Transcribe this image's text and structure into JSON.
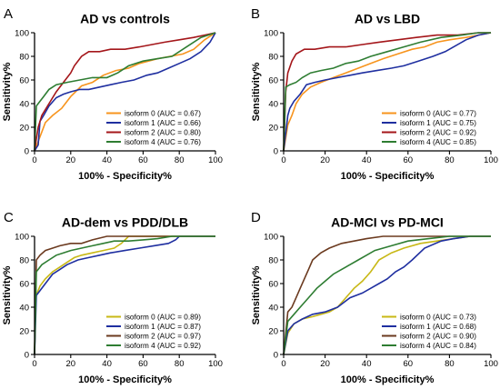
{
  "chart_data": [
    {
      "letter": "A",
      "type": "line",
      "title": "AD vs controls",
      "xlabel": "100% - Specificity%",
      "ylabel": "Sensitivity%",
      "xlim": [
        0,
        100
      ],
      "ylim": [
        0,
        100
      ],
      "xticks": [
        "0",
        "20",
        "40",
        "60",
        "80",
        "100"
      ],
      "yticks": [
        "0",
        "20",
        "40",
        "60",
        "80",
        "100"
      ],
      "legend_position": "bottom-right",
      "series": [
        {
          "name": "isoform 0 (AUC = 0.67)",
          "color": "#F7941D",
          "x": [
            0,
            2,
            4,
            6,
            10,
            15,
            20,
            26,
            32,
            38,
            45,
            52,
            58,
            63,
            68,
            75,
            82,
            88,
            94,
            100
          ],
          "y": [
            0,
            8,
            16,
            24,
            30,
            36,
            46,
            55,
            58,
            64,
            68,
            70,
            74,
            76,
            78,
            80,
            82,
            86,
            94,
            100
          ]
        },
        {
          "name": "isoform 1 (AUC = 0.66)",
          "color": "#1F2FA0",
          "x": [
            0,
            2,
            3,
            5,
            8,
            12,
            16,
            20,
            25,
            30,
            36,
            42,
            48,
            55,
            62,
            68,
            74,
            80,
            86,
            92,
            97,
            100
          ],
          "y": [
            0,
            5,
            25,
            30,
            38,
            45,
            48,
            50,
            52,
            52,
            54,
            56,
            58,
            60,
            64,
            66,
            70,
            74,
            78,
            84,
            92,
            100
          ]
        },
        {
          "name": "isoform 2 (AUC = 0.80)",
          "color": "#A4161A",
          "x": [
            0,
            2,
            4,
            8,
            12,
            16,
            20,
            22,
            26,
            30,
            36,
            42,
            50,
            58,
            65,
            72,
            80,
            88,
            94,
            100
          ],
          "y": [
            0,
            20,
            30,
            40,
            50,
            58,
            66,
            72,
            80,
            84,
            84,
            86,
            86,
            88,
            90,
            92,
            94,
            96,
            98,
            100
          ]
        },
        {
          "name": "isoform 4 (AUC = 0.76)",
          "color": "#2E7D32",
          "x": [
            0,
            1,
            3,
            5,
            8,
            12,
            18,
            25,
            32,
            40,
            46,
            52,
            60,
            68,
            76,
            84,
            92,
            100
          ],
          "y": [
            0,
            38,
            42,
            46,
            52,
            56,
            58,
            60,
            62,
            62,
            66,
            72,
            76,
            78,
            80,
            88,
            96,
            100
          ]
        }
      ]
    },
    {
      "letter": "B",
      "type": "line",
      "title": "AD vs LBD",
      "xlabel": "100% - Specificity%",
      "ylabel": "Sensitivity%",
      "xlim": [
        0,
        100
      ],
      "ylim": [
        0,
        100
      ],
      "xticks": [
        "0",
        "20",
        "40",
        "60",
        "80",
        "100"
      ],
      "yticks": [
        "0",
        "20",
        "40",
        "60",
        "80",
        "100"
      ],
      "legend_position": "bottom-right",
      "series": [
        {
          "name": "isoform 0 (AUC = 0.77)",
          "color": "#F7941D",
          "x": [
            0,
            2,
            4,
            6,
            9,
            13,
            18,
            24,
            30,
            36,
            42,
            48,
            55,
            62,
            68,
            74,
            80,
            88,
            94,
            100
          ],
          "y": [
            0,
            22,
            30,
            40,
            48,
            54,
            58,
            62,
            66,
            70,
            74,
            78,
            82,
            86,
            88,
            92,
            94,
            96,
            98,
            100
          ]
        },
        {
          "name": "isoform 1 (AUC = 0.75)",
          "color": "#1F2FA0",
          "x": [
            0,
            2,
            3,
            5,
            8,
            11,
            15,
            20,
            26,
            32,
            38,
            45,
            52,
            58,
            65,
            72,
            78,
            82,
            88,
            94,
            100
          ],
          "y": [
            0,
            30,
            36,
            42,
            48,
            56,
            58,
            60,
            62,
            64,
            66,
            68,
            70,
            72,
            76,
            80,
            84,
            88,
            94,
            98,
            100
          ]
        },
        {
          "name": "isoform 2 (AUC = 0.92)",
          "color": "#A4161A",
          "x": [
            0,
            1,
            2,
            4,
            6,
            10,
            15,
            22,
            30,
            38,
            46,
            55,
            64,
            74,
            84,
            94,
            100
          ],
          "y": [
            0,
            50,
            66,
            76,
            82,
            86,
            86,
            88,
            88,
            90,
            92,
            94,
            96,
            98,
            98,
            100,
            100
          ]
        },
        {
          "name": "isoform 4 (AUC = 0.85)",
          "color": "#2E7D32",
          "x": [
            0,
            1,
            3,
            6,
            9,
            13,
            18,
            24,
            30,
            36,
            42,
            50,
            58,
            66,
            76,
            86,
            94,
            100
          ],
          "y": [
            0,
            54,
            56,
            58,
            62,
            66,
            68,
            70,
            74,
            76,
            80,
            84,
            88,
            92,
            96,
            98,
            100,
            100
          ]
        }
      ]
    },
    {
      "letter": "C",
      "type": "line",
      "title": "AD-dem vs PDD/DLB",
      "xlabel": "100% - Specificity%",
      "ylabel": "Sensitivity%",
      "xlim": [
        0,
        100
      ],
      "ylim": [
        0,
        100
      ],
      "xticks": [
        "0",
        "20",
        "40",
        "60",
        "80",
        "100"
      ],
      "yticks": [
        "0",
        "20",
        "40",
        "60",
        "80",
        "100"
      ],
      "legend_position": "bottom-right",
      "series": [
        {
          "name": "isoform 0 (AUC = 0.89)",
          "color": "#C8B816",
          "x": [
            0,
            0.5,
            1,
            3,
            6,
            10,
            14,
            18,
            22,
            26,
            32,
            38,
            44,
            48,
            52,
            60,
            70,
            80,
            90,
            100
          ],
          "y": [
            0,
            45,
            50,
            58,
            64,
            70,
            74,
            78,
            82,
            84,
            86,
            88,
            90,
            94,
            100,
            100,
            100,
            100,
            100,
            100
          ]
        },
        {
          "name": "isoform 1 (AUC = 0.87)",
          "color": "#1F2FA0",
          "x": [
            0,
            1,
            3,
            6,
            10,
            14,
            18,
            24,
            30,
            36,
            42,
            50,
            58,
            66,
            74,
            78,
            80,
            90,
            100
          ],
          "y": [
            0,
            50,
            54,
            60,
            68,
            72,
            76,
            80,
            82,
            84,
            86,
            88,
            90,
            92,
            94,
            97,
            100,
            100,
            100
          ]
        },
        {
          "name": "isoform 2 (AUC = 0.97)",
          "color": "#6B3A1F",
          "x": [
            0,
            1,
            3,
            6,
            10,
            14,
            20,
            26,
            32,
            40,
            48,
            60,
            70,
            80,
            90,
            100
          ],
          "y": [
            0,
            80,
            84,
            88,
            90,
            92,
            94,
            94,
            97,
            100,
            100,
            100,
            100,
            100,
            100,
            100
          ]
        },
        {
          "name": "isoform 4 (AUC = 0.92)",
          "color": "#2E7D32",
          "x": [
            0,
            1,
            4,
            8,
            12,
            16,
            20,
            26,
            32,
            38,
            44,
            52,
            60,
            68,
            76,
            84,
            92,
            100
          ],
          "y": [
            0,
            70,
            76,
            80,
            84,
            86,
            88,
            90,
            92,
            94,
            96,
            96,
            97,
            98,
            100,
            100,
            100,
            100
          ]
        }
      ]
    },
    {
      "letter": "D",
      "type": "line",
      "title": "AD-MCI vs PD-MCI",
      "xlabel": "100% - Specificity%",
      "ylabel": "Sensitivity%",
      "xlim": [
        0,
        100
      ],
      "ylim": [
        0,
        100
      ],
      "xticks": [
        "0",
        "20",
        "40",
        "60",
        "80",
        "100"
      ],
      "yticks": [
        "0",
        "20",
        "40",
        "60",
        "80",
        "100"
      ],
      "legend_position": "bottom-right",
      "series": [
        {
          "name": "isoform 0 (AUC = 0.73)",
          "color": "#C8B816",
          "x": [
            0,
            2,
            5,
            9,
            14,
            18,
            22,
            26,
            30,
            34,
            38,
            42,
            46,
            52,
            58,
            66,
            74,
            82,
            90,
            100
          ],
          "y": [
            0,
            18,
            26,
            30,
            32,
            34,
            36,
            40,
            48,
            56,
            62,
            70,
            80,
            86,
            90,
            94,
            96,
            98,
            100,
            100
          ]
        },
        {
          "name": "isoform 1 (AUC = 0.68)",
          "color": "#1F2FA0",
          "x": [
            0,
            2,
            5,
            9,
            14,
            20,
            26,
            32,
            38,
            42,
            46,
            50,
            54,
            58,
            62,
            68,
            76,
            82,
            90,
            100
          ],
          "y": [
            0,
            20,
            26,
            30,
            34,
            36,
            40,
            48,
            52,
            56,
            60,
            64,
            70,
            74,
            80,
            90,
            96,
            98,
            100,
            100
          ]
        },
        {
          "name": "isoform 2 (AUC = 0.90)",
          "color": "#6B3A1F",
          "x": [
            0,
            2,
            4,
            6,
            8,
            10,
            12,
            14,
            18,
            22,
            28,
            34,
            40,
            48,
            60,
            72,
            84,
            100
          ],
          "y": [
            0,
            36,
            40,
            48,
            56,
            64,
            72,
            80,
            86,
            90,
            94,
            96,
            98,
            100,
            100,
            100,
            100,
            100
          ]
        },
        {
          "name": "isoform 4 (AUC = 0.84)",
          "color": "#2E7D32",
          "x": [
            0,
            2,
            5,
            8,
            12,
            16,
            20,
            24,
            28,
            32,
            36,
            40,
            44,
            52,
            60,
            70,
            80,
            90,
            100
          ],
          "y": [
            0,
            28,
            34,
            40,
            48,
            56,
            62,
            68,
            72,
            76,
            80,
            84,
            88,
            92,
            96,
            98,
            100,
            100,
            100
          ]
        }
      ]
    }
  ]
}
